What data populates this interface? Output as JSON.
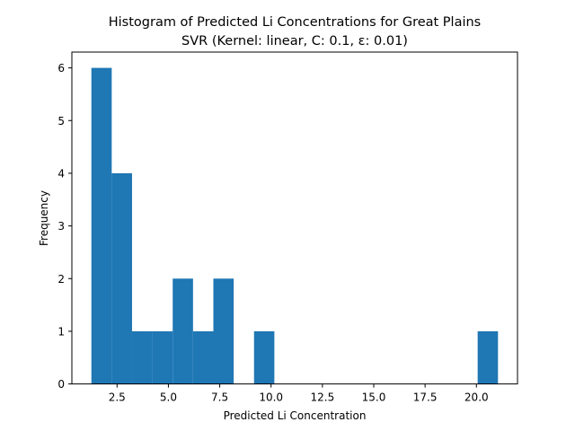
{
  "chart_data": {
    "type": "bar",
    "title": "Histogram of Predicted Li Concentrations for Great Plains",
    "subtitle": "SVR (Kernel: linear, C: 0.1, ε: 0.01)",
    "xlabel": "Predicted Li Concentration",
    "ylabel": "Frequency",
    "xlim": [
      0.3,
      22.0
    ],
    "ylim": [
      0,
      6.3
    ],
    "x_ticks": [
      2.5,
      5.0,
      7.5,
      10.0,
      12.5,
      15.0,
      17.5,
      20.0
    ],
    "x_tick_labels": [
      "2.5",
      "5.0",
      "7.5",
      "10.0",
      "12.5",
      "15.0",
      "17.5",
      "20.0"
    ],
    "y_ticks": [
      0,
      1,
      2,
      3,
      4,
      5,
      6
    ],
    "y_tick_labels": [
      "0",
      "1",
      "2",
      "3",
      "4",
      "5",
      "6"
    ],
    "bin_edges": [
      1.25,
      2.24,
      3.23,
      4.22,
      5.21,
      6.2,
      7.19,
      8.18,
      9.17,
      10.16,
      11.15,
      12.14,
      13.13,
      14.12,
      15.11,
      16.1,
      17.09,
      18.08,
      19.07,
      20.06,
      21.05
    ],
    "counts": [
      6,
      4,
      1,
      1,
      2,
      1,
      2,
      0,
      1,
      0,
      0,
      0,
      0,
      0,
      0,
      0,
      0,
      0,
      0,
      1
    ],
    "bar_color": "#1f77b4",
    "grid": false
  }
}
